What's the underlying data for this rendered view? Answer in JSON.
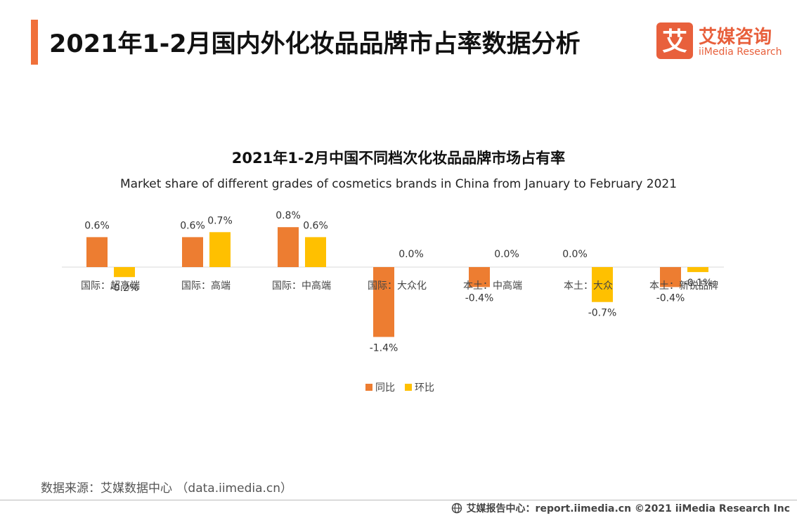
{
  "header": {
    "title": "2021年1-2月国内外化妆品品牌市占率数据分析",
    "accent_color": "#F0703A"
  },
  "logo": {
    "mark": "艾",
    "cn": "艾媒咨询",
    "en": "iiMedia Research",
    "color": "#E8603C"
  },
  "chart_data": {
    "type": "bar",
    "title": "2021年1-2月中国不同档次化妆品品牌市场占有率",
    "subtitle": "Market share of different grades of cosmetics brands in China from January to February 2021",
    "categories": [
      "国际：超高端",
      "国际：高端",
      "国际：中高端",
      "国际：大众化",
      "本土：中高端",
      "本土：大众",
      "本土：新锐品牌"
    ],
    "series": [
      {
        "name": "同比",
        "color": "#ED7D31",
        "values": [
          0.6,
          0.6,
          0.8,
          -1.4,
          -0.4,
          0.0,
          -0.4
        ],
        "labels": [
          "0.6%",
          "0.6%",
          "0.8%",
          "-1.4%",
          "-0.4%",
          "0.0%",
          "-0.4%"
        ]
      },
      {
        "name": "环比",
        "color": "#FFC000",
        "values": [
          -0.2,
          0.7,
          0.6,
          0.0,
          0.0,
          -0.7,
          -0.1
        ],
        "labels": [
          "-0.2%",
          "0.7%",
          "0.6%",
          "0.0%",
          "0.0%",
          "-0.7%",
          "-0.1%"
        ]
      }
    ],
    "legend": "bottom",
    "grid": false
  },
  "source": "数据来源：艾媒数据中心 （data.iimedia.cn）",
  "footer": {
    "text": "艾媒报告中心：report.iimedia.cn  ©2021  iiMedia Research  Inc",
    "icon": "globe-icon"
  }
}
